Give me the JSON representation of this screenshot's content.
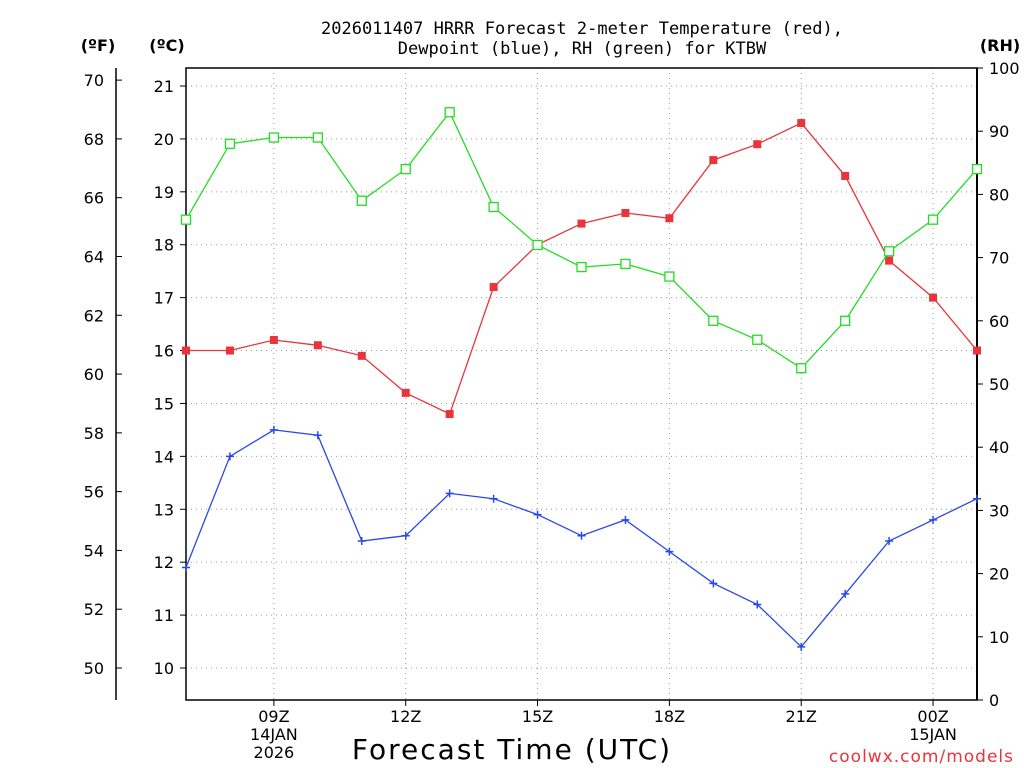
{
  "chart_data": {
    "type": "line",
    "title_line1": "2026011407 HRRR Forecast 2-meter Temperature (red),",
    "title_line2": "Dewpoint (blue), RH (green) for KTBW",
    "unit_f": "(ºF)",
    "unit_c": "(ºC)",
    "unit_rh": "(RH)",
    "xlabel": "Forecast Time (UTC)",
    "credit": "coolwx.com/models",
    "x_hours": [
      7,
      8,
      9,
      10,
      11,
      12,
      13,
      14,
      15,
      16,
      17,
      18,
      19,
      20,
      21,
      22,
      23,
      24,
      25
    ],
    "x_range": [
      7,
      25
    ],
    "x_ticks": [
      {
        "hour": 9,
        "line1": "09Z",
        "line2": "14JAN",
        "line3": "2026"
      },
      {
        "hour": 12,
        "line1": "12Z",
        "line2": "",
        "line3": ""
      },
      {
        "hour": 15,
        "line1": "15Z",
        "line2": "",
        "line3": ""
      },
      {
        "hour": 18,
        "line1": "18Z",
        "line2": "",
        "line3": ""
      },
      {
        "hour": 21,
        "line1": "21Z",
        "line2": "",
        "line3": ""
      },
      {
        "hour": 24,
        "line1": "00Z",
        "line2": "15JAN",
        "line3": ""
      }
    ],
    "celsius_range": [
      9.4,
      21.4
    ],
    "celsius_ticks": [
      10,
      11,
      12,
      13,
      14,
      15,
      16,
      17,
      18,
      19,
      20,
      21
    ],
    "fahrenheit_ticks": [
      50,
      52,
      54,
      56,
      58,
      60,
      62,
      64,
      66,
      68,
      70
    ],
    "rh_range": [
      0,
      100
    ],
    "rh_ticks": [
      0,
      10,
      20,
      30,
      40,
      50,
      60,
      70,
      80,
      90,
      100
    ],
    "series": [
      {
        "name": "2-meter Temperature",
        "color": "#e8343a",
        "marker": "filled-square",
        "axis": "celsius",
        "values": [
          16.0,
          16.0,
          16.2,
          16.1,
          15.9,
          15.2,
          14.8,
          17.2,
          18.0,
          18.4,
          18.6,
          18.5,
          19.6,
          19.9,
          20.3,
          19.3,
          17.7,
          17.0,
          16.0
        ]
      },
      {
        "name": "Dewpoint",
        "color": "#2848e8",
        "marker": "plus",
        "axis": "celsius",
        "values": [
          11.9,
          14.0,
          14.5,
          14.4,
          12.4,
          12.5,
          13.3,
          13.2,
          12.9,
          12.5,
          12.8,
          12.2,
          11.6,
          11.2,
          10.4,
          11.4,
          12.4,
          12.8,
          13.2
        ]
      },
      {
        "name": "RH",
        "color": "#22dd22",
        "marker": "open-square",
        "axis": "rh",
        "values": [
          76,
          88,
          89,
          89,
          79,
          84,
          93,
          78,
          72,
          68.5,
          69,
          67,
          60,
          57,
          52.5,
          60,
          71,
          76,
          84
        ]
      }
    ]
  }
}
